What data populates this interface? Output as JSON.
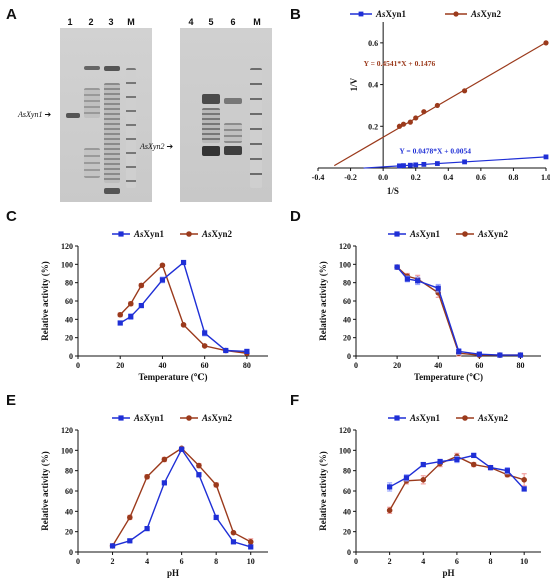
{
  "panels": {
    "A": {
      "letter": "A",
      "gel1": {
        "lanes": [
          "1",
          "2",
          "3",
          "M"
        ],
        "arrow_label": "AsXyn1"
      },
      "gel2": {
        "lanes": [
          "4",
          "5",
          "6",
          "M"
        ],
        "arrow_label": "AsXyn2"
      }
    },
    "B": {
      "letter": "B"
    },
    "C": {
      "letter": "C"
    },
    "D": {
      "letter": "D"
    },
    "E": {
      "letter": "E"
    },
    "F": {
      "letter": "F"
    }
  },
  "colors": {
    "xyn1": "#1f2fd6",
    "xyn2": "#9b3a1c",
    "err_xyn1": "#9aa6ff",
    "err_xyn2": "#f2a0a0"
  },
  "chart_data": [
    {
      "id": "B",
      "type": "line",
      "xlabel": "1/S",
      "ylabel": "1/V",
      "xlim": [
        -0.4,
        1.0
      ],
      "ylim": [
        0,
        0.7
      ],
      "xticks": [
        "-0.4",
        "-0.2",
        "0.0",
        "0.2",
        "0.4",
        "0.6",
        "0.8",
        "1.0"
      ],
      "yticks": [
        "0.2",
        "0.4",
        "0.6"
      ],
      "legend": [
        "AsXyn1",
        "AsXyn2"
      ],
      "series": [
        {
          "name": "AsXyn1",
          "equation": "Y = 0.0478*X + 0.0054",
          "slope": 0.0478,
          "intercept": 0.0054,
          "x": [
            0.1,
            0.125,
            0.167,
            0.2,
            0.25,
            0.333,
            0.5,
            1.0
          ],
          "y": [
            0.0102,
            0.0114,
            0.0134,
            0.015,
            0.0174,
            0.0213,
            0.0293,
            0.0532
          ]
        },
        {
          "name": "AsXyn2",
          "equation": "Y = 0.4541*X + 0.1476",
          "slope": 0.4541,
          "intercept": 0.1476,
          "x": [
            0.1,
            0.125,
            0.167,
            0.2,
            0.25,
            0.333,
            0.5,
            1.0
          ],
          "y": [
            0.2,
            0.21,
            0.22,
            0.24,
            0.27,
            0.3,
            0.37,
            0.6
          ]
        }
      ]
    },
    {
      "id": "C",
      "type": "line",
      "xlabel": "Temperature (℃)",
      "ylabel": "Relative activity (%)",
      "xlim": [
        0,
        90
      ],
      "ylim": [
        0,
        120
      ],
      "xticks": [
        "0",
        "20",
        "40",
        "60",
        "80"
      ],
      "yticks": [
        "0",
        "20",
        "40",
        "60",
        "80",
        "100",
        "120"
      ],
      "legend": [
        "AsXyn1",
        "AsXyn2"
      ],
      "series": [
        {
          "name": "AsXyn1",
          "x": [
            20,
            25,
            30,
            40,
            50,
            60,
            70,
            80
          ],
          "y": [
            36,
            43,
            55,
            83,
            102,
            25,
            6,
            5
          ],
          "err": [
            2,
            3,
            2,
            3,
            1,
            3,
            1,
            2
          ]
        },
        {
          "name": "AsXyn2",
          "x": [
            20,
            25,
            30,
            40,
            50,
            60,
            70,
            80
          ],
          "y": [
            45,
            57,
            77,
            99,
            34,
            11,
            6,
            3
          ],
          "err": [
            2,
            2,
            2,
            1,
            1,
            1,
            1,
            1
          ]
        }
      ]
    },
    {
      "id": "D",
      "type": "line",
      "xlabel": "Temperature (℃)",
      "ylabel": "Relative activity (%)",
      "xlim": [
        0,
        90
      ],
      "ylim": [
        0,
        120
      ],
      "xticks": [
        "0",
        "20",
        "40",
        "60",
        "80"
      ],
      "yticks": [
        "0",
        "20",
        "40",
        "60",
        "80",
        "100",
        "120"
      ],
      "legend": [
        "AsXyn1",
        "AsXyn2"
      ],
      "series": [
        {
          "name": "AsXyn1",
          "x": [
            20,
            25,
            30,
            40,
            50,
            60,
            70,
            80
          ],
          "y": [
            97,
            84,
            82,
            74,
            5,
            2,
            1,
            1
          ],
          "err": [
            2,
            3,
            4,
            4,
            3,
            1,
            1,
            1
          ]
        },
        {
          "name": "AsXyn2",
          "x": [
            20,
            25,
            30,
            40,
            50,
            60,
            70,
            80
          ],
          "y": [
            97,
            87,
            84,
            69,
            3,
            1,
            1,
            1
          ],
          "err": [
            2,
            3,
            4,
            5,
            3,
            1,
            1,
            1
          ]
        }
      ]
    },
    {
      "id": "E",
      "type": "line",
      "xlabel": "pH",
      "ylabel": "Relative activity (%)",
      "xlim": [
        0,
        11
      ],
      "ylim": [
        0,
        120
      ],
      "xticks": [
        "0",
        "2",
        "4",
        "6",
        "8",
        "10"
      ],
      "yticks": [
        "0",
        "20",
        "40",
        "60",
        "80",
        "100",
        "120"
      ],
      "legend": [
        "AsXyn1",
        "AsXyn2"
      ],
      "series": [
        {
          "name": "AsXyn1",
          "x": [
            2,
            3,
            4,
            5,
            6,
            7,
            8,
            9,
            10
          ],
          "y": [
            6,
            11,
            23,
            68,
            101,
            76,
            34,
            10,
            5
          ],
          "err": [
            1,
            1,
            1,
            1,
            2,
            2,
            2,
            1,
            1
          ]
        },
        {
          "name": "AsXyn2",
          "x": [
            2,
            3,
            4,
            5,
            6,
            7,
            8,
            9,
            10
          ],
          "y": [
            6,
            34,
            74,
            91,
            102,
            85,
            66,
            19,
            10
          ],
          "err": [
            1,
            2,
            2,
            2,
            1,
            2,
            2,
            1,
            3
          ]
        }
      ]
    },
    {
      "id": "F",
      "type": "line",
      "xlabel": "pH",
      "ylabel": "Relative activity (%)",
      "xlim": [
        0,
        11
      ],
      "ylim": [
        0,
        120
      ],
      "xticks": [
        "0",
        "2",
        "4",
        "6",
        "8",
        "10"
      ],
      "yticks": [
        "0",
        "20",
        "40",
        "60",
        "80",
        "100",
        "120"
      ],
      "legend": [
        "AsXyn1",
        "AsXyn2"
      ],
      "series": [
        {
          "name": "AsXyn1",
          "x": [
            2,
            3,
            4,
            5,
            6,
            7,
            8,
            9,
            10
          ],
          "y": [
            64,
            73,
            86,
            89,
            91,
            95,
            83,
            80,
            62
          ],
          "err": [
            4,
            3,
            2,
            2,
            3,
            2,
            2,
            3,
            2
          ]
        },
        {
          "name": "AsXyn2",
          "x": [
            2,
            3,
            4,
            5,
            6,
            7,
            8,
            9,
            10
          ],
          "y": [
            41,
            70,
            71,
            87,
            94,
            86,
            83,
            76,
            71
          ],
          "err": [
            3,
            3,
            4,
            3,
            3,
            2,
            2,
            2,
            6
          ]
        }
      ]
    }
  ]
}
